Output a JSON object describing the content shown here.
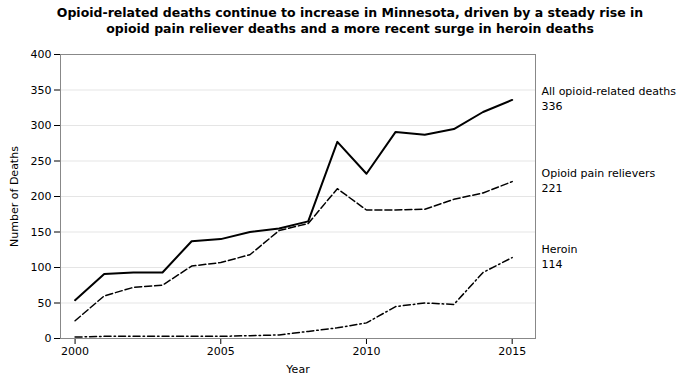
{
  "chart_data": {
    "type": "line",
    "title": "Opioid-related deaths continue to increase in Minnesota, driven by a steady rise in\nopioid pain reliever deaths and a more recent surge in heroin deaths",
    "x_label": "Year",
    "y_label": "Number of Deaths",
    "x": [
      2000,
      2001,
      2002,
      2003,
      2004,
      2005,
      2006,
      2007,
      2008,
      2009,
      2010,
      2011,
      2012,
      2013,
      2014,
      2015
    ],
    "series": [
      {
        "name": "All opioid-related deaths",
        "color": "#000000",
        "line_style": "solid",
        "values": [
          54,
          91,
          93,
          93,
          137,
          140,
          150,
          155,
          165,
          277,
          232,
          291,
          287,
          295,
          319,
          336
        ]
      },
      {
        "name": "Opioid pain relievers",
        "color": "#000000",
        "line_style": "dashed",
        "values": [
          25,
          60,
          72,
          75,
          102,
          107,
          118,
          152,
          162,
          211,
          181,
          181,
          182,
          196,
          205,
          221
        ]
      },
      {
        "name": "Heroin",
        "color": "#000000",
        "line_style": "dashdot",
        "values": [
          2,
          3,
          3,
          3,
          3,
          3,
          4,
          5,
          10,
          15,
          22,
          45,
          50,
          48,
          93,
          114
        ]
      }
    ],
    "annotations": [
      {
        "series": "All opioid-related deaths",
        "text": "336"
      },
      {
        "series": "Opioid pain relievers",
        "text": "221"
      },
      {
        "series": "Heroin",
        "text": "114"
      }
    ],
    "xlim": [
      1999.5,
      2015.8
    ],
    "xticks": [
      2000,
      2005,
      2010,
      2015
    ],
    "ylim": [
      0,
      400
    ],
    "yticks": [
      0,
      50,
      100,
      150,
      200,
      250,
      300,
      350,
      400
    ],
    "grid": true
  }
}
